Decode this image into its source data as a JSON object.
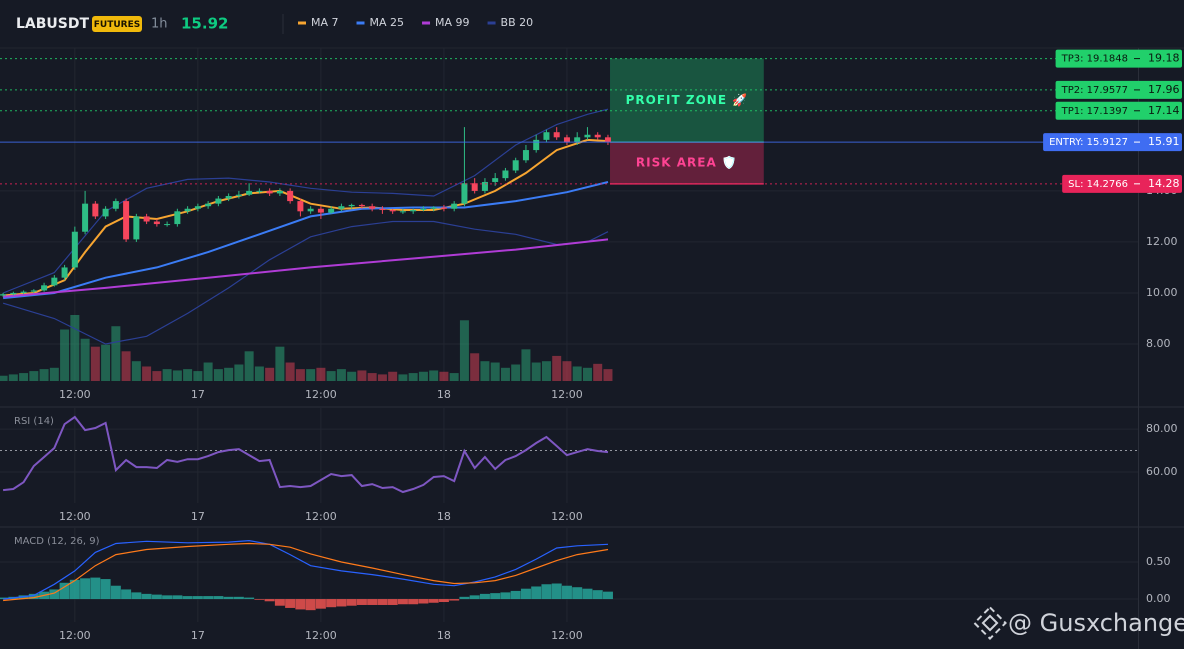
{
  "header": {
    "symbol": "LABUSDT",
    "badge": "FUTURES",
    "interval": "1h",
    "last_price": 15.92
  },
  "watermark": "@ Gusxchange",
  "chart_data": [
    {
      "type": "candlestick",
      "xlim": [
        -0.3,
        110.7
      ],
      "xticks": [
        {
          "value": 7,
          "label": "12:00"
        },
        {
          "value": 19,
          "label": "17"
        },
        {
          "value": 31,
          "label": "12:00"
        },
        {
          "value": 43,
          "label": "18"
        },
        {
          "value": 55,
          "label": "12:00"
        }
      ],
      "ylim": [
        6.55,
        19.6
      ],
      "yticks": [
        {
          "value": 8,
          "label": "8.00"
        },
        {
          "value": 10,
          "label": "10.00"
        },
        {
          "value": 12,
          "label": "12.00"
        },
        {
          "value": 14,
          "label": "14.00"
        }
      ],
      "grid": true,
      "up_color": "#2ebd85",
      "down_color": "#f6465d",
      "candles": {
        "open": [
          9.9,
          9.95,
          10.0,
          10.05,
          10.1,
          10.3,
          10.6,
          11.0,
          12.4,
          13.5,
          13.0,
          13.3,
          13.6,
          12.1,
          13.0,
          12.8,
          12.7,
          12.7,
          13.2,
          13.3,
          13.4,
          13.5,
          13.7,
          13.8,
          13.85,
          14.0,
          14.0,
          13.9,
          14.0,
          13.6,
          13.2,
          13.3,
          13.15,
          13.3,
          13.4,
          13.45,
          13.4,
          13.3,
          13.25,
          13.2,
          13.2,
          13.25,
          13.3,
          13.35,
          13.3,
          13.5,
          14.3,
          14.0,
          14.35,
          14.5,
          14.8,
          15.2,
          15.6,
          16.0,
          16.3,
          16.1,
          15.9,
          16.1,
          16.2,
          16.1
        ],
        "high": [
          10.0,
          10.05,
          10.1,
          10.15,
          10.4,
          10.7,
          11.1,
          12.6,
          14.0,
          13.6,
          13.4,
          13.7,
          13.7,
          13.1,
          13.1,
          12.9,
          12.8,
          13.3,
          13.4,
          13.5,
          13.6,
          13.8,
          13.9,
          14.0,
          14.3,
          14.1,
          14.1,
          14.1,
          14.1,
          13.7,
          13.4,
          13.4,
          13.4,
          13.5,
          13.5,
          13.5,
          13.5,
          13.4,
          13.3,
          13.3,
          13.3,
          13.4,
          13.4,
          13.45,
          13.6,
          16.5,
          14.5,
          14.5,
          14.7,
          14.9,
          15.3,
          15.8,
          16.2,
          16.4,
          16.5,
          16.2,
          16.3,
          16.5,
          16.3,
          16.2
        ],
        "low": [
          9.85,
          9.9,
          9.95,
          10.0,
          10.05,
          10.25,
          10.5,
          10.9,
          12.3,
          12.9,
          12.9,
          13.2,
          12.0,
          12.0,
          12.7,
          12.6,
          12.6,
          12.6,
          13.1,
          13.2,
          13.3,
          13.4,
          13.6,
          13.7,
          13.8,
          13.9,
          13.8,
          13.8,
          13.5,
          13.0,
          13.1,
          12.9,
          13.1,
          13.2,
          13.3,
          13.3,
          13.2,
          13.1,
          13.1,
          13.1,
          13.1,
          13.2,
          13.2,
          13.2,
          13.2,
          13.4,
          13.9,
          13.9,
          14.2,
          14.4,
          14.7,
          15.1,
          15.5,
          15.9,
          16.0,
          15.8,
          15.8,
          16.0,
          16.0,
          15.8
        ],
        "close": [
          9.95,
          10.0,
          10.05,
          10.1,
          10.3,
          10.6,
          11.0,
          12.4,
          13.5,
          13.0,
          13.3,
          13.6,
          12.1,
          13.0,
          12.8,
          12.7,
          12.7,
          13.2,
          13.3,
          13.4,
          13.5,
          13.7,
          13.8,
          13.85,
          14.0,
          14.0,
          13.9,
          14.0,
          13.6,
          13.2,
          13.3,
          13.15,
          13.3,
          13.4,
          13.45,
          13.4,
          13.3,
          13.25,
          13.2,
          13.2,
          13.25,
          13.3,
          13.35,
          13.3,
          13.5,
          14.3,
          14.0,
          14.35,
          14.5,
          14.8,
          15.2,
          15.6,
          16.0,
          16.3,
          16.1,
          15.9,
          16.1,
          16.2,
          16.1,
          15.91
        ]
      },
      "volume": [
        8,
        10,
        12,
        15,
        18,
        20,
        78,
        100,
        64,
        52,
        55,
        83,
        45,
        30,
        22,
        15,
        18,
        16,
        18,
        15,
        28,
        18,
        20,
        25,
        45,
        22,
        20,
        52,
        28,
        18,
        18,
        20,
        15,
        18,
        14,
        16,
        12,
        10,
        14,
        10,
        12,
        14,
        16,
        14,
        12,
        92,
        42,
        30,
        28,
        20,
        25,
        48,
        28,
        30,
        38,
        30,
        22,
        20,
        26,
        18
      ],
      "volume_lim": [
        0,
        100
      ],
      "lines": [
        {
          "name": "MA 7",
          "color": "#f7a531",
          "x": [
            0,
            3,
            6,
            8,
            10,
            12,
            15,
            18,
            21,
            24,
            27,
            30,
            33,
            36,
            39,
            42,
            45,
            48,
            51,
            54,
            57,
            59
          ],
          "values": [
            9.9,
            10.0,
            10.5,
            11.6,
            12.6,
            13.0,
            12.9,
            13.2,
            13.6,
            13.9,
            14.0,
            13.5,
            13.3,
            13.35,
            13.25,
            13.25,
            13.5,
            14.0,
            14.7,
            15.6,
            16.0,
            15.95
          ]
        },
        {
          "name": "MA 25",
          "color": "#3b7cf5",
          "x": [
            0,
            5,
            10,
            15,
            20,
            25,
            30,
            35,
            40,
            45,
            50,
            55,
            59
          ],
          "values": [
            9.8,
            10.0,
            10.6,
            11.0,
            11.6,
            12.3,
            13.0,
            13.3,
            13.35,
            13.35,
            13.6,
            13.95,
            14.35
          ]
        },
        {
          "name": "MA 99",
          "color": "#b03cd6",
          "x": [
            0,
            10,
            20,
            30,
            40,
            50,
            59
          ],
          "values": [
            9.85,
            10.2,
            10.6,
            11.0,
            11.35,
            11.7,
            12.1
          ]
        }
      ],
      "bands": {
        "name": "BB 20",
        "color": "#2b3f94",
        "x": [
          0,
          5,
          10,
          14,
          18,
          22,
          26,
          30,
          34,
          38,
          42,
          46,
          50,
          54,
          57,
          59
        ],
        "upper": [
          10.0,
          10.8,
          13.2,
          14.1,
          14.45,
          14.5,
          14.35,
          14.1,
          13.95,
          13.9,
          13.8,
          14.6,
          15.8,
          16.6,
          17.0,
          17.2
        ],
        "lower": [
          9.6,
          9.0,
          8.0,
          8.3,
          9.2,
          10.2,
          11.3,
          12.2,
          12.6,
          12.8,
          12.8,
          12.5,
          12.3,
          11.9,
          12.0,
          12.4
        ]
      },
      "zones": [
        {
          "label": "PROFIT ZONE 🚀",
          "from": 15.9127,
          "to": 19.1848,
          "x": [
            59.2,
            74.2
          ],
          "color": "#1fae6a"
        },
        {
          "label": "RISK AREA 🛡️",
          "from": 14.2766,
          "to": 15.9127,
          "x": [
            59.2,
            74.2
          ],
          "color": "#d62a5c"
        }
      ],
      "levels": [
        {
          "label": "TP3: 19.1848",
          "value": 19.1848,
          "axis_label": "19.18",
          "color": "#21d06b",
          "text_color": "#0b1a10",
          "style": "dotted"
        },
        {
          "label": "TP2: 17.9577",
          "value": 17.9577,
          "axis_label": "17.96",
          "color": "#21d06b",
          "text_color": "#0b1a10",
          "style": "dotted"
        },
        {
          "label": "TP1: 17.1397",
          "value": 17.1397,
          "axis_label": "17.14",
          "color": "#21d06b",
          "text_color": "#0b1a10",
          "style": "dotted"
        },
        {
          "label": "ENTRY: 15.9127",
          "value": 15.9127,
          "axis_label": "15.91",
          "color": "#3f6df2",
          "text_color": "#ffffff",
          "style": "solid"
        },
        {
          "label": "SL: 14.2766",
          "value": 14.2766,
          "axis_label": "14.28",
          "color": "#e8245a",
          "text_color": "#ffffff",
          "style": "dotted"
        }
      ]
    },
    {
      "type": "line",
      "title": "RSI (14)",
      "xlim": [
        -0.3,
        110.7
      ],
      "xticks": [
        {
          "value": 7,
          "label": "12:00"
        },
        {
          "value": 19,
          "label": "17"
        },
        {
          "value": 31,
          "label": "12:00"
        },
        {
          "value": 43,
          "label": "18"
        },
        {
          "value": 55,
          "label": "12:00"
        }
      ],
      "ylim": [
        45.6,
        89.8
      ],
      "yticks": [
        {
          "value": 60,
          "label": "60.00"
        },
        {
          "value": 80,
          "label": "80.00"
        }
      ],
      "grid": true,
      "reference_line": 70,
      "series": [
        {
          "color": "#7e57c2",
          "values": [
            51.6,
            52.1,
            55.3,
            62.8,
            67.0,
            71.2,
            82.3,
            85.6,
            79.5,
            80.5,
            82.8,
            60.9,
            65.6,
            62.3,
            62.3,
            61.9,
            65.6,
            64.7,
            66.0,
            66.0,
            67.4,
            69.3,
            70.2,
            70.7,
            67.9,
            65.1,
            65.6,
            53.0,
            53.5,
            53.0,
            53.5,
            56.3,
            59.1,
            58.1,
            58.6,
            53.5,
            54.4,
            52.6,
            53.0,
            50.7,
            52.1,
            54.0,
            57.7,
            58.1,
            55.8,
            69.8,
            61.9,
            67.0,
            61.4,
            65.6,
            67.4,
            70.2,
            73.5,
            76.3,
            72.1,
            67.9,
            69.3,
            70.7,
            69.8,
            69.3
          ]
        }
      ]
    },
    {
      "type": "macd",
      "title": "MACD (12, 26, 9)",
      "xlim": [
        -0.3,
        110.7
      ],
      "xticks": [
        {
          "value": 7,
          "label": "12:00"
        },
        {
          "value": 19,
          "label": "17"
        },
        {
          "value": 31,
          "label": "12:00"
        },
        {
          "value": 43,
          "label": "18"
        },
        {
          "value": 55,
          "label": "12:00"
        }
      ],
      "ylim": [
        -0.31,
        0.96
      ],
      "yticks": [
        {
          "value": 0,
          "label": "0.00"
        },
        {
          "value": 0.5,
          "label": "0.50"
        }
      ],
      "grid": true,
      "up_color": "#26a69a",
      "down_color": "#ef5350",
      "histogram": [
        0.02,
        0.03,
        0.05,
        0.07,
        0.1,
        0.13,
        0.22,
        0.26,
        0.28,
        0.29,
        0.27,
        0.18,
        0.13,
        0.09,
        0.07,
        0.06,
        0.05,
        0.05,
        0.04,
        0.04,
        0.04,
        0.04,
        0.03,
        0.03,
        0.02,
        -0.01,
        -0.03,
        -0.09,
        -0.12,
        -0.14,
        -0.15,
        -0.13,
        -0.11,
        -0.1,
        -0.09,
        -0.08,
        -0.08,
        -0.08,
        -0.08,
        -0.07,
        -0.07,
        -0.06,
        -0.05,
        -0.04,
        -0.02,
        0.03,
        0.05,
        0.07,
        0.08,
        0.09,
        0.11,
        0.14,
        0.17,
        0.2,
        0.21,
        0.18,
        0.16,
        0.14,
        0.12,
        0.1
      ],
      "series": [
        {
          "color": "#2962ff",
          "x": [
            0,
            3,
            5,
            7,
            9,
            11,
            14,
            18,
            22,
            24,
            26,
            28,
            30,
            33,
            36,
            39,
            42,
            44,
            46,
            48,
            50,
            52,
            54,
            56,
            59
          ],
          "values": [
            0.0,
            0.05,
            0.2,
            0.38,
            0.63,
            0.75,
            0.78,
            0.76,
            0.77,
            0.79,
            0.74,
            0.6,
            0.45,
            0.38,
            0.33,
            0.27,
            0.2,
            0.18,
            0.23,
            0.3,
            0.4,
            0.54,
            0.69,
            0.72,
            0.74
          ]
        },
        {
          "color": "#ff7a1a",
          "x": [
            0,
            3,
            5,
            7,
            9,
            11,
            14,
            18,
            22,
            24,
            26,
            28,
            30,
            33,
            36,
            39,
            42,
            44,
            46,
            48,
            50,
            52,
            54,
            56,
            59
          ],
          "values": [
            -0.02,
            0.02,
            0.08,
            0.25,
            0.45,
            0.6,
            0.67,
            0.71,
            0.74,
            0.75,
            0.74,
            0.7,
            0.61,
            0.5,
            0.42,
            0.33,
            0.25,
            0.21,
            0.22,
            0.25,
            0.32,
            0.42,
            0.52,
            0.6,
            0.67
          ]
        }
      ]
    }
  ]
}
